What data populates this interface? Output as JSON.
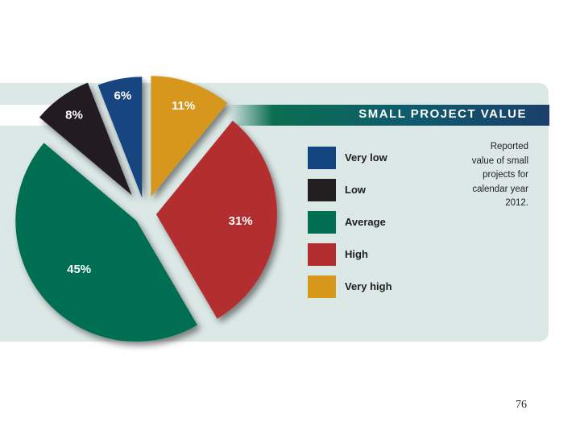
{
  "chart_data": {
    "type": "pie",
    "title": "SMALL PROJECT VALUE",
    "note": [
      "Reported",
      "value of small",
      "projects for",
      "calendar year",
      "2012."
    ],
    "slices": [
      {
        "name": "Very low",
        "value": 6,
        "label": "6%",
        "color": "#13457f"
      },
      {
        "name": "Low",
        "value": 8,
        "label": "8%",
        "color": "#231f20"
      },
      {
        "name": "Average",
        "value": 45,
        "label": "45%",
        "color": "#006e52"
      },
      {
        "name": "High",
        "value": 31,
        "label": "31%",
        "color": "#b32f2f"
      },
      {
        "name": "Very high",
        "value": 11,
        "label": "11%",
        "color": "#d7971b"
      }
    ]
  },
  "legend": [
    {
      "label": "Very low",
      "color": "#13457f"
    },
    {
      "label": "Low",
      "color": "#231f20"
    },
    {
      "label": "Average",
      "color": "#006e52"
    },
    {
      "label": "High",
      "color": "#b32f2f"
    },
    {
      "label": "Very high",
      "color": "#d7971b"
    }
  ],
  "page_number": "76"
}
